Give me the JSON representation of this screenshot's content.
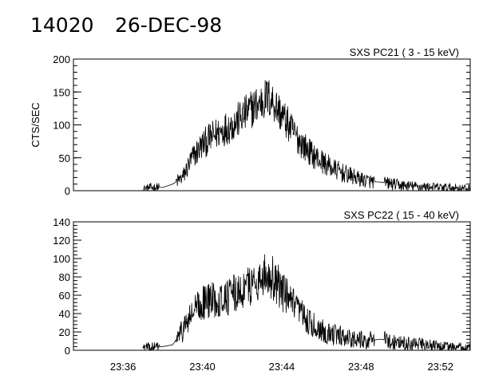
{
  "header": {
    "event_id": "14020",
    "date": "26-DEC-98"
  },
  "chart_data": [
    {
      "type": "line",
      "title": "SXS PC21  ( 3 - 15 keV)",
      "ylabel": "CTS/SEC",
      "xlabel": "",
      "xlim": [
        "23:33:30",
        "23:53:30"
      ],
      "ylim": [
        0,
        200
      ],
      "yticks": [
        "0",
        "50",
        "100",
        "150",
        "200"
      ],
      "xticks": [],
      "grid": false,
      "series": [
        {
          "x": [
            "23:37:00",
            "23:37:30",
            "23:38:00",
            "23:38:30",
            "23:39:00",
            "23:39:30",
            "23:40:00",
            "23:40:30",
            "23:41:00",
            "23:41:30",
            "23:42:00",
            "23:42:30",
            "23:43:00",
            "23:43:15",
            "23:43:30",
            "23:44:00",
            "23:44:30",
            "23:45:00",
            "23:45:30",
            "23:46:00",
            "23:46:30",
            "23:47:00",
            "23:47:30",
            "23:48:00",
            "23:48:30",
            "23:49:00",
            "23:50:00",
            "23:51:00",
            "23:52:00",
            "23:53:00",
            "23:53:30"
          ],
          "values": [
            3,
            5,
            5,
            10,
            20,
            50,
            70,
            82,
            92,
            100,
            112,
            125,
            135,
            142,
            138,
            115,
            92,
            72,
            56,
            45,
            35,
            28,
            22,
            17,
            14,
            13,
            8,
            6,
            5,
            4,
            3
          ]
        }
      ]
    },
    {
      "type": "line",
      "title": "SXS PC22  ( 15 - 40 keV)",
      "ylabel": "",
      "xlabel": "",
      "xlim": [
        "23:33:30",
        "23:53:30"
      ],
      "ylim": [
        0,
        140
      ],
      "yticks": [
        "0",
        "20",
        "40",
        "60",
        "80",
        "100",
        "120",
        "140"
      ],
      "xticks": [
        "23:36",
        "23:40",
        "23:44",
        "23:48",
        "23:52"
      ],
      "grid": false,
      "series": [
        {
          "x": [
            "23:37:00",
            "23:37:30",
            "23:38:00",
            "23:38:30",
            "23:39:00",
            "23:39:30",
            "23:40:00",
            "23:40:30",
            "23:41:00",
            "23:41:30",
            "23:42:00",
            "23:42:30",
            "23:43:00",
            "23:43:15",
            "23:43:30",
            "23:44:00",
            "23:44:30",
            "23:45:00",
            "23:45:30",
            "23:46:00",
            "23:46:30",
            "23:47:00",
            "23:47:30",
            "23:48:00",
            "23:48:30",
            "23:49:00",
            "23:50:00",
            "23:51:00",
            "23:52:00",
            "23:53:00",
            "23:53:30"
          ],
          "values": [
            3,
            3,
            4,
            6,
            22,
            40,
            52,
            55,
            57,
            60,
            65,
            72,
            80,
            83,
            80,
            65,
            50,
            38,
            28,
            22,
            18,
            15,
            13,
            11,
            11,
            12,
            8,
            6,
            4,
            3,
            2
          ]
        }
      ]
    }
  ]
}
